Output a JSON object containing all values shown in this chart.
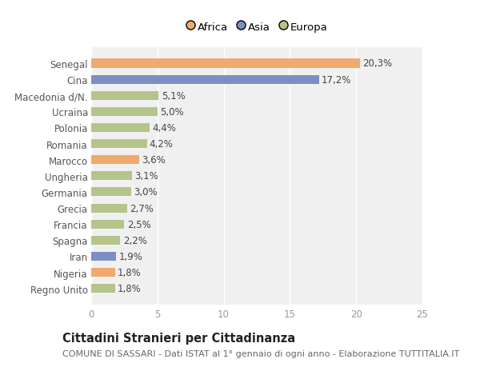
{
  "categories": [
    "Regno Unito",
    "Nigeria",
    "Iran",
    "Spagna",
    "Francia",
    "Grecia",
    "Germania",
    "Ungheria",
    "Marocco",
    "Romania",
    "Polonia",
    "Ucraina",
    "Macedonia d/N.",
    "Cina",
    "Senegal"
  ],
  "values": [
    1.8,
    1.8,
    1.9,
    2.2,
    2.5,
    2.7,
    3.0,
    3.1,
    3.6,
    4.2,
    4.4,
    5.0,
    5.1,
    17.2,
    20.3
  ],
  "labels": [
    "1,8%",
    "1,8%",
    "1,9%",
    "2,2%",
    "2,5%",
    "2,7%",
    "3,0%",
    "3,1%",
    "3,6%",
    "4,2%",
    "4,4%",
    "5,0%",
    "5,1%",
    "17,2%",
    "20,3%"
  ],
  "colors": [
    "#b5c48a",
    "#f0a96e",
    "#7b8fc4",
    "#b5c48a",
    "#b5c48a",
    "#b5c48a",
    "#b5c48a",
    "#b5c48a",
    "#f0a96e",
    "#b5c48a",
    "#b5c48a",
    "#b5c48a",
    "#b5c48a",
    "#7b8fc4",
    "#f0a96e"
  ],
  "legend_labels": [
    "Africa",
    "Asia",
    "Europa"
  ],
  "legend_colors": [
    "#f0a96e",
    "#7b8fc4",
    "#b5c48a"
  ],
  "title": "Cittadini Stranieri per Cittadinanza",
  "subtitle": "COMUNE DI SASSARI - Dati ISTAT al 1° gennaio di ogni anno - Elaborazione TUTTITALIA.IT",
  "xlim": [
    0,
    25
  ],
  "xticks": [
    0,
    5,
    10,
    15,
    20,
    25
  ],
  "bg_color": "#ffffff",
  "plot_bg_color": "#f0f0f0",
  "bar_height": 0.55,
  "label_fontsize": 8.5,
  "tick_fontsize": 8.5,
  "title_fontsize": 10.5,
  "subtitle_fontsize": 8
}
